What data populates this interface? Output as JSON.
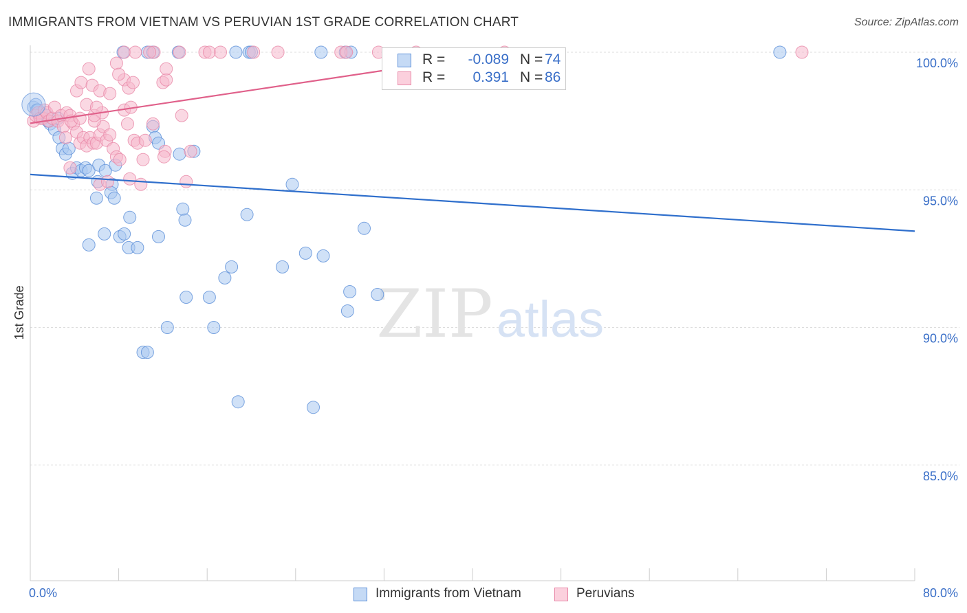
{
  "header": {
    "title": "IMMIGRANTS FROM VIETNAM VS PERUVIAN 1ST GRADE CORRELATION CHART",
    "source": "Source: ZipAtlas.com"
  },
  "watermark": {
    "zip": "ZIP",
    "atlas": "atlas"
  },
  "legend_top": {
    "r_label": "R =",
    "n_label": "N =",
    "rows": [
      {
        "r": "-0.089",
        "n": "74"
      },
      {
        "r": "0.391",
        "n": "86"
      }
    ]
  },
  "colors": {
    "vietnam_fill": "#aac8f0",
    "vietnam_stroke": "#5b8fd8",
    "vietnam_line": "#2f6fcc",
    "peru_fill": "#f6b8cc",
    "peru_stroke": "#e888a8",
    "peru_line": "#e0608a",
    "tick_label": "#3a6fc8"
  },
  "chart_data": {
    "type": "scatter",
    "title": "IMMIGRANTS FROM VIETNAM VS PERUVIAN 1ST GRADE CORRELATION CHART",
    "xlabel": "",
    "ylabel": "1st Grade",
    "xlim": [
      0,
      80
    ],
    "ylim": [
      80.8,
      100.4
    ],
    "x_tick_labels": [
      "0.0%",
      "80.0%"
    ],
    "y_ticks": [
      85,
      90,
      95,
      100
    ],
    "y_tick_labels": [
      "85.0%",
      "90.0%",
      "95.0%",
      "100.0%"
    ],
    "grid": true,
    "legend_position": "bottom",
    "series": [
      {
        "name": "Immigrants from Vietnam",
        "r": -0.089,
        "n": 74,
        "trend": {
          "x": [
            0,
            80
          ],
          "y": [
            95.56,
            93.5
          ]
        },
        "points": [
          [
            0.3,
            98.0
          ],
          [
            0.5,
            98.1
          ],
          [
            0.6,
            97.9
          ],
          [
            0.8,
            97.7
          ],
          [
            1.0,
            97.8
          ],
          [
            1.2,
            97.6
          ],
          [
            1.5,
            97.7
          ],
          [
            1.8,
            97.4
          ],
          [
            2.2,
            97.2
          ],
          [
            2.6,
            96.9
          ],
          [
            2.9,
            96.5
          ],
          [
            3.2,
            96.3
          ],
          [
            3.5,
            96.5
          ],
          [
            3.8,
            95.6
          ],
          [
            4.2,
            95.8
          ],
          [
            4.6,
            95.7
          ],
          [
            5.0,
            95.8
          ],
          [
            5.3,
            95.7
          ],
          [
            6.2,
            95.9
          ],
          [
            6.8,
            95.7
          ],
          [
            7.4,
            95.2
          ],
          [
            7.7,
            95.9
          ],
          [
            6.1,
            95.3
          ],
          [
            6.0,
            94.7
          ],
          [
            7.3,
            94.9
          ],
          [
            7.6,
            94.7
          ],
          [
            9.0,
            94.0
          ],
          [
            5.3,
            93.0
          ],
          [
            6.7,
            93.4
          ],
          [
            8.1,
            93.3
          ],
          [
            8.5,
            93.4
          ],
          [
            8.9,
            92.9
          ],
          [
            9.7,
            92.9
          ],
          [
            11.6,
            93.3
          ],
          [
            11.1,
            97.3
          ],
          [
            11.3,
            96.9
          ],
          [
            11.6,
            96.7
          ],
          [
            13.5,
            96.3
          ],
          [
            14.8,
            96.4
          ],
          [
            13.8,
            94.3
          ],
          [
            14.0,
            93.9
          ],
          [
            14.1,
            91.1
          ],
          [
            16.2,
            91.1
          ],
          [
            16.6,
            90.0
          ],
          [
            17.6,
            91.8
          ],
          [
            18.2,
            92.2
          ],
          [
            19.6,
            94.1
          ],
          [
            22.8,
            92.2
          ],
          [
            23.7,
            95.2
          ],
          [
            24.9,
            92.7
          ],
          [
            26.5,
            92.6
          ],
          [
            25.6,
            87.1
          ],
          [
            12.4,
            90.0
          ],
          [
            10.2,
            89.1
          ],
          [
            10.6,
            89.1
          ],
          [
            18.8,
            87.3
          ],
          [
            28.7,
            90.6
          ],
          [
            28.9,
            91.3
          ],
          [
            30.2,
            93.6
          ],
          [
            31.4,
            91.2
          ],
          [
            8.4,
            100.0
          ],
          [
            10.6,
            100.0
          ],
          [
            11.1,
            100.0
          ],
          [
            13.4,
            100.0
          ],
          [
            18.6,
            100.0
          ],
          [
            19.8,
            100.0
          ],
          [
            20.0,
            100.0
          ],
          [
            26.3,
            100.0
          ],
          [
            28.5,
            100.0
          ],
          [
            29.0,
            100.0
          ],
          [
            67.8,
            100.0
          ],
          [
            0.7,
            97.9
          ],
          [
            1.6,
            97.5
          ],
          [
            2.5,
            97.6
          ]
        ]
      },
      {
        "name": "Peruvians",
        "r": 0.391,
        "n": 86,
        "trend": {
          "x": [
            0,
            43
          ],
          "y": [
            97.42,
            100.0
          ]
        },
        "points": [
          [
            0.3,
            97.5
          ],
          [
            0.5,
            97.7
          ],
          [
            0.7,
            97.8
          ],
          [
            0.9,
            97.6
          ],
          [
            1.1,
            97.6
          ],
          [
            1.3,
            97.9
          ],
          [
            1.5,
            97.8
          ],
          [
            1.7,
            97.5
          ],
          [
            2.0,
            97.6
          ],
          [
            2.2,
            98.0
          ],
          [
            2.5,
            97.5
          ],
          [
            2.8,
            97.7
          ],
          [
            3.0,
            97.3
          ],
          [
            3.3,
            97.8
          ],
          [
            3.6,
            97.7
          ],
          [
            3.9,
            97.4
          ],
          [
            4.2,
            97.1
          ],
          [
            4.5,
            96.7
          ],
          [
            4.8,
            96.9
          ],
          [
            5.1,
            96.6
          ],
          [
            5.4,
            96.9
          ],
          [
            5.7,
            96.7
          ],
          [
            6.0,
            96.7
          ],
          [
            6.3,
            97.0
          ],
          [
            6.6,
            97.3
          ],
          [
            6.9,
            96.8
          ],
          [
            7.2,
            97.0
          ],
          [
            7.5,
            96.5
          ],
          [
            7.8,
            96.2
          ],
          [
            8.1,
            96.1
          ],
          [
            8.5,
            97.9
          ],
          [
            8.8,
            97.4
          ],
          [
            9.1,
            98.0
          ],
          [
            9.4,
            96.8
          ],
          [
            9.7,
            96.7
          ],
          [
            10.2,
            96.1
          ],
          [
            10.4,
            96.8
          ],
          [
            11.1,
            97.4
          ],
          [
            12.2,
            96.4
          ],
          [
            14.1,
            95.3
          ],
          [
            13.7,
            97.7
          ],
          [
            14.5,
            96.4
          ],
          [
            4.2,
            98.6
          ],
          [
            4.6,
            98.9
          ],
          [
            5.3,
            99.4
          ],
          [
            5.6,
            98.8
          ],
          [
            6.3,
            98.6
          ],
          [
            7.2,
            98.5
          ],
          [
            7.8,
            99.6
          ],
          [
            8.5,
            99.0
          ],
          [
            8.9,
            98.7
          ],
          [
            9.3,
            98.9
          ],
          [
            12.0,
            98.9
          ],
          [
            12.3,
            99.0
          ],
          [
            12.3,
            99.4
          ],
          [
            3.7,
            97.5
          ],
          [
            4.5,
            97.6
          ],
          [
            5.1,
            98.1
          ],
          [
            5.8,
            97.5
          ],
          [
            6.5,
            97.8
          ],
          [
            3.2,
            96.9
          ],
          [
            3.6,
            95.8
          ],
          [
            5.8,
            97.7
          ],
          [
            6.3,
            95.2
          ],
          [
            7.0,
            95.3
          ],
          [
            9.0,
            95.4
          ],
          [
            10.0,
            95.2
          ],
          [
            12.1,
            96.2
          ],
          [
            8.0,
            99.2
          ],
          [
            6.0,
            98.0
          ],
          [
            8.5,
            100.0
          ],
          [
            9.5,
            100.0
          ],
          [
            11.2,
            100.0
          ],
          [
            13.5,
            100.0
          ],
          [
            15.8,
            100.0
          ],
          [
            16.2,
            100.0
          ],
          [
            17.2,
            100.0
          ],
          [
            20.2,
            100.0
          ],
          [
            22.4,
            100.0
          ],
          [
            28.1,
            100.0
          ],
          [
            28.6,
            100.0
          ],
          [
            31.5,
            100.0
          ],
          [
            34.9,
            100.0
          ],
          [
            42.9,
            100.0
          ],
          [
            69.8,
            100.0
          ],
          [
            10.8,
            100.0
          ]
        ]
      }
    ]
  }
}
